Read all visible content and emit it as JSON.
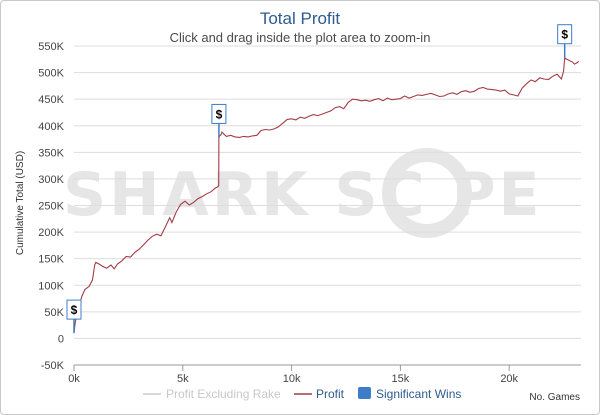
{
  "chart_data": {
    "type": "line",
    "title": "Total Profit",
    "subtitle": "Click and drag inside the plot area to zoom-in",
    "xlabel": "No. Games",
    "ylabel": "Cumulative Total (USD)",
    "xlim": [
      0,
      23300
    ],
    "ylim": [
      -50000,
      550000
    ],
    "x_ticks": [
      0,
      5000,
      10000,
      15000,
      20000
    ],
    "x_tick_labels": [
      "0k",
      "5k",
      "10k",
      "15k",
      "20k"
    ],
    "y_ticks": [
      -50000,
      0,
      50000,
      100000,
      150000,
      200000,
      250000,
      300000,
      350000,
      400000,
      450000,
      500000,
      550000
    ],
    "y_tick_labels": [
      "-50K",
      "0",
      "50K",
      "100K",
      "150K",
      "200K",
      "250K",
      "300K",
      "350K",
      "400K",
      "450K",
      "500K",
      "550K"
    ],
    "grid": true,
    "legend_position": "bottom",
    "series": [
      {
        "name": "Profit Excluding Rake",
        "color": "#cccccc",
        "visible": false,
        "x": [],
        "y": []
      },
      {
        "name": "Profit",
        "color": "#a33c45",
        "x": [
          0,
          50,
          150,
          250,
          350,
          500,
          700,
          850,
          950,
          1000,
          1150,
          1300,
          1500,
          1700,
          1850,
          2000,
          2200,
          2400,
          2600,
          2800,
          3000,
          3200,
          3400,
          3600,
          3800,
          4000,
          4200,
          4400,
          4500,
          4700,
          4900,
          5100,
          5300,
          5500,
          5700,
          5900,
          6100,
          6300,
          6500,
          6600,
          6650,
          6660,
          6700,
          6750,
          6800,
          6900,
          7000,
          7200,
          7400,
          7600,
          7800,
          8000,
          8200,
          8400,
          8600,
          8800,
          9000,
          9200,
          9400,
          9600,
          9800,
          10000,
          10200,
          10400,
          10600,
          10800,
          11000,
          11200,
          11400,
          11600,
          11800,
          12000,
          12200,
          12400,
          12600,
          12800,
          13000,
          13200,
          13400,
          13600,
          13800,
          14000,
          14200,
          14400,
          14600,
          14800,
          15000,
          15200,
          15400,
          15600,
          15800,
          16000,
          16200,
          16400,
          16600,
          16800,
          17000,
          17200,
          17400,
          17600,
          17800,
          18000,
          18200,
          18400,
          18600,
          18800,
          19000,
          19200,
          19400,
          19600,
          19800,
          20000,
          20200,
          20400,
          20600,
          20800,
          21000,
          21200,
          21400,
          21600,
          21800,
          22000,
          22200,
          22400,
          22500,
          22550,
          22600,
          22700,
          22800,
          22900,
          23000,
          23100,
          23200
        ],
        "y": [
          10000,
          28000,
          52000,
          60000,
          78000,
          92000,
          98000,
          110000,
          138000,
          143000,
          140000,
          136000,
          132000,
          138000,
          131000,
          140000,
          146000,
          154000,
          153000,
          162000,
          168000,
          176000,
          185000,
          192000,
          196000,
          193000,
          210000,
          227000,
          218000,
          238000,
          252000,
          258000,
          251000,
          256000,
          263000,
          267000,
          272000,
          276000,
          283000,
          285000,
          287000,
          378000,
          381000,
          383000,
          388000,
          384000,
          380000,
          382000,
          379000,
          378000,
          380000,
          379000,
          381000,
          382000,
          391000,
          393000,
          392000,
          394000,
          398000,
          405000,
          412000,
          413000,
          411000,
          416000,
          414000,
          418000,
          421000,
          419000,
          422000,
          425000,
          428000,
          434000,
          436000,
          432000,
          444000,
          450000,
          449000,
          447000,
          448000,
          446000,
          449000,
          451000,
          447000,
          452000,
          449000,
          450000,
          451000,
          456000,
          452000,
          455000,
          458000,
          457000,
          459000,
          461000,
          458000,
          455000,
          456000,
          460000,
          462000,
          459000,
          464000,
          466000,
          463000,
          465000,
          470000,
          472000,
          469000,
          468000,
          467000,
          465000,
          467000,
          460000,
          458000,
          456000,
          471000,
          479000,
          486000,
          483000,
          490000,
          488000,
          487000,
          493000,
          497000,
          488000,
          503000,
          528000,
          526000,
          524000,
          522000,
          520000,
          516000,
          518000,
          521000
        ]
      }
    ],
    "markers": [
      {
        "name": "Significant Wins",
        "color": "#3d7cc9",
        "label": "$",
        "at": [
          [
            0,
            10000
          ],
          [
            6660,
            378000
          ],
          [
            22550,
            528000
          ]
        ]
      }
    ],
    "watermark": "SHARK SC  PE"
  }
}
